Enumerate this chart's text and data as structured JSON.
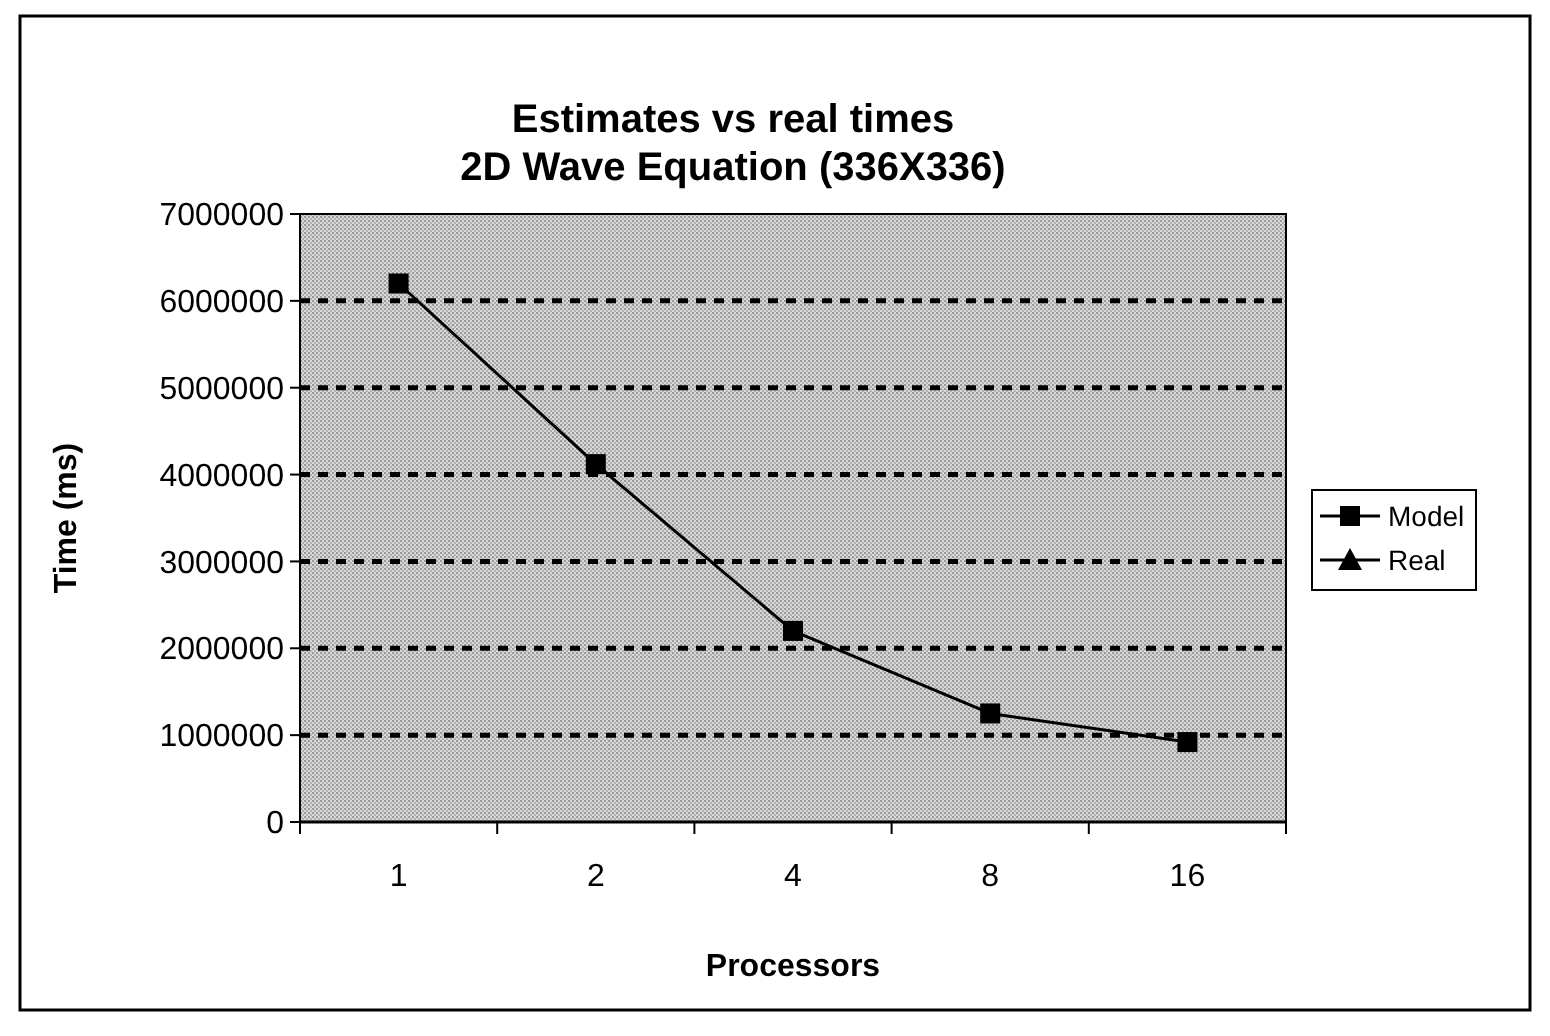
{
  "chart_data": {
    "type": "line",
    "title": "Estimates vs real times",
    "subtitle": "2D Wave Equation (336X336)",
    "xlabel": "Processors",
    "ylabel": "Time (ms)",
    "categories": [
      "1",
      "2",
      "4",
      "8",
      "16"
    ],
    "ylim": [
      0,
      7000000
    ],
    "yticks": [
      0,
      1000000,
      2000000,
      3000000,
      4000000,
      5000000,
      6000000,
      7000000
    ],
    "grid": "y",
    "legend": "right",
    "series": [
      {
        "name": "Model",
        "color": "#000000",
        "marker": "square",
        "values": [
          6200000,
          4120000,
          2200000,
          1250000,
          920000
        ]
      },
      {
        "name": "Real",
        "color": "#000000",
        "marker": "triangle",
        "values": [
          null,
          null,
          null,
          null,
          null
        ]
      }
    ]
  }
}
